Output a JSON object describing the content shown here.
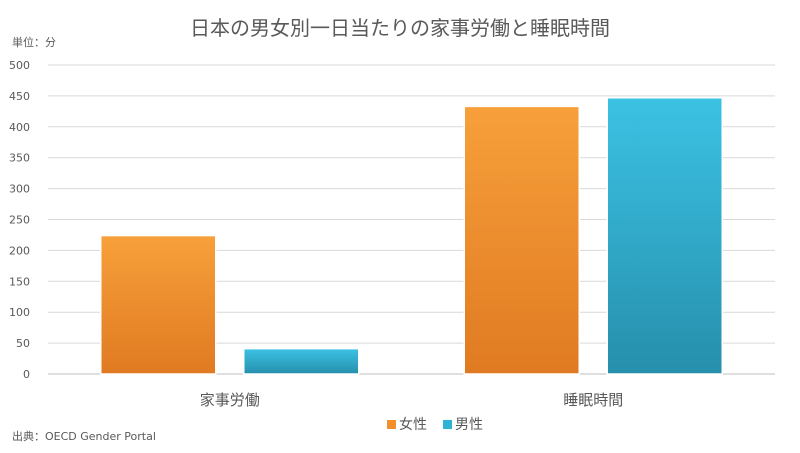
{
  "chart_data": {
    "type": "bar",
    "title": "日本の男女別一日当たりの家事労働と睡眠時間",
    "unit_label": "単位：分",
    "source": "出典：OECD Gender Portal",
    "categories": [
      "家事労働",
      "睡眠時間"
    ],
    "series": [
      {
        "name": "女性",
        "values": [
          224,
          433
        ],
        "color": "#f28e2b"
      },
      {
        "name": "男性",
        "values": [
          41,
          447
        ],
        "color": "#2fb3d4"
      }
    ],
    "ylim": [
      0,
      500
    ],
    "yticks": [
      0,
      50,
      100,
      150,
      200,
      250,
      300,
      350,
      400,
      450,
      500
    ],
    "grid": true,
    "legend": "bottom"
  }
}
